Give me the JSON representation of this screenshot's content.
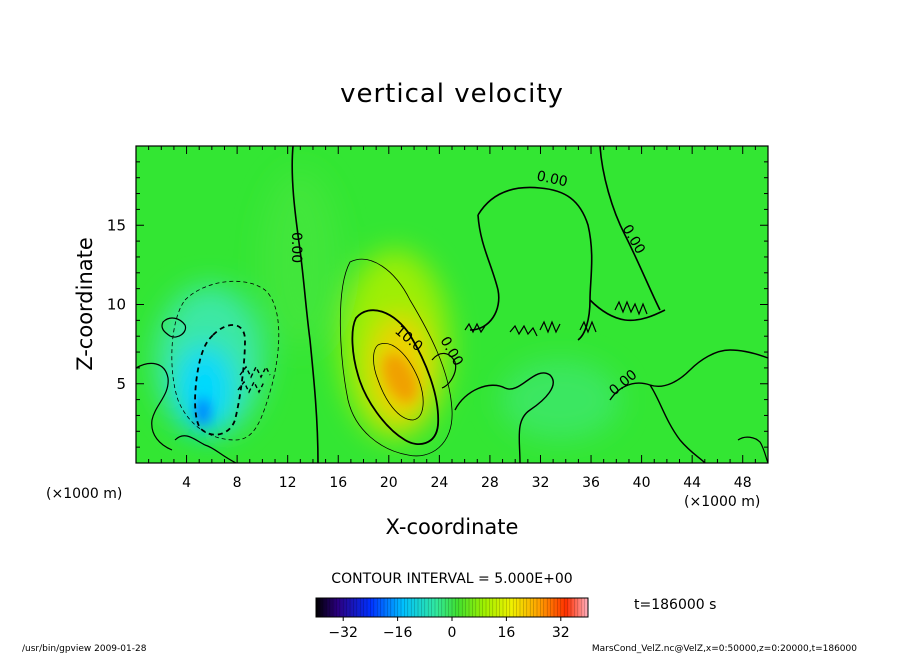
{
  "chart_data": {
    "type": "heatmap",
    "title": "vertical velocity",
    "xlabel": "X-coordinate",
    "ylabel": "Z-coordinate",
    "x_unit": "(×1000 m)",
    "z_unit": "(×1000 m)",
    "xlim": [
      0,
      50
    ],
    "ylim": [
      0,
      20
    ],
    "x_ticks": [
      4,
      8,
      12,
      16,
      20,
      24,
      28,
      32,
      36,
      40,
      44,
      48
    ],
    "y_ticks": [
      5,
      10,
      15
    ],
    "contour_interval": "CONTOUR INTERVAL = 5.000E+00",
    "contour_labels": [
      "0.00",
      "0.00",
      "0.00",
      "10.0",
      "0.00",
      "0.00"
    ],
    "colorbar": {
      "ticks": [
        -32,
        -16,
        0,
        16,
        32
      ],
      "range": [
        -40,
        40
      ]
    },
    "time_label": "t=186000 s",
    "features": [
      {
        "kind": "updraft",
        "x": 20.5,
        "z": 6.5,
        "peak": 20
      },
      {
        "kind": "downdraft",
        "x": 6.5,
        "z": 5.5,
        "peak": -15
      }
    ]
  },
  "footer": {
    "left": "/usr/bin/gpview  2009-01-28",
    "right": "MarsCond_VelZ.nc@VelZ,x=0:50000,z=0:20000,t=186000"
  },
  "colors": {
    "background_field": "#33e633",
    "updraft_core": "#f0a000",
    "downdraft_core": "#00d0ff"
  }
}
